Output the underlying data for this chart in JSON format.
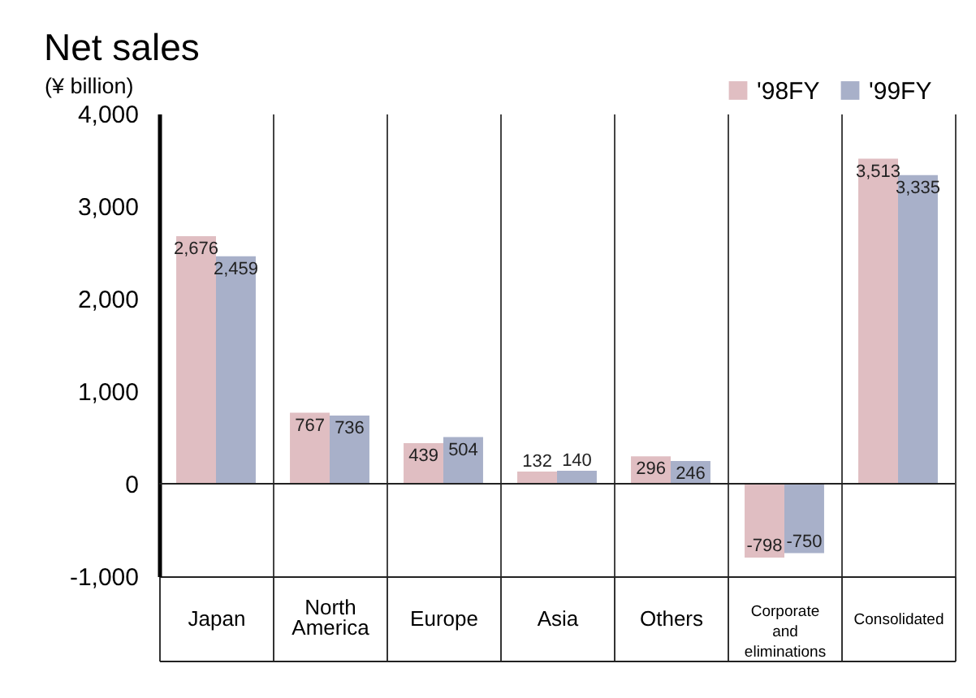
{
  "chart_data": {
    "type": "bar",
    "title": "Net sales",
    "ylabel": "(¥ billion)",
    "categories": [
      "Japan",
      "North America",
      "Europe",
      "Asia",
      "Others",
      "Corporate and eliminations",
      "Consolidated"
    ],
    "series": [
      {
        "name": "'98FY",
        "color": "#e0bec2",
        "values": [
          2676,
          767,
          439,
          132,
          296,
          -798,
          3513
        ],
        "value_labels": [
          "2,676",
          "767",
          "439",
          "132",
          "296",
          "-798",
          "3,513"
        ]
      },
      {
        "name": "'99FY",
        "color": "#a8b0c9",
        "values": [
          2459,
          736,
          504,
          140,
          246,
          -750,
          3335
        ],
        "value_labels": [
          "2,459",
          "736",
          "504",
          "140",
          "246",
          "-750",
          "3,335"
        ]
      }
    ],
    "ylim": [
      -1000,
      4000
    ],
    "yticks": [
      {
        "value": -1000,
        "label": "-1,000"
      },
      0,
      {
        "value": 1000,
        "label": "1,000"
      },
      {
        "value": 2000,
        "label": "2,000"
      },
      {
        "value": 3000,
        "label": "3,000"
      },
      {
        "value": 4000,
        "label": "4,000"
      }
    ],
    "ref_lines": [
      {
        "axis": "y",
        "value": 0
      }
    ],
    "grid": "x",
    "legend": "top right"
  }
}
